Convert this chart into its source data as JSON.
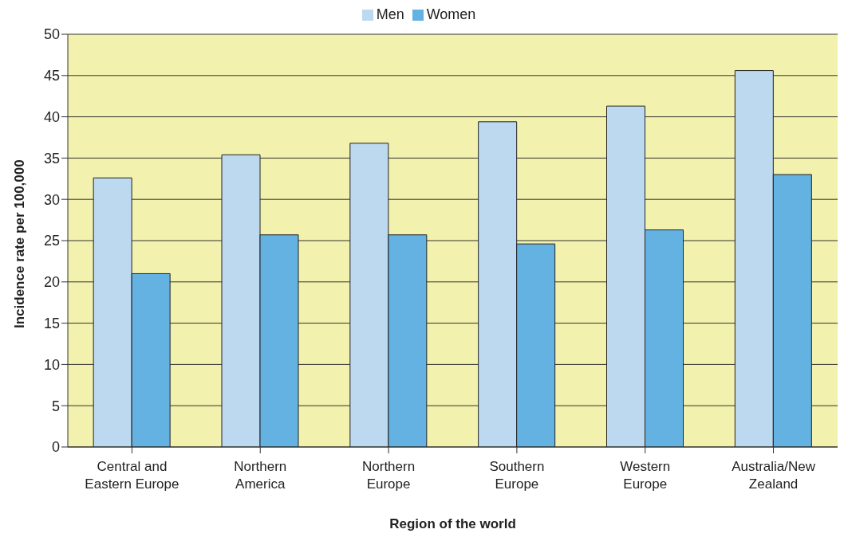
{
  "chart_data": {
    "type": "bar",
    "categories": [
      "Central and Eastern Europe",
      "Northern America",
      "Northern Europe",
      "Southern Europe",
      "Western Europe",
      "Australia/New Zealand"
    ],
    "series": [
      {
        "name": "Men",
        "color": "#bdd9f0",
        "values": [
          32.6,
          35.4,
          36.8,
          39.4,
          41.3,
          45.6
        ]
      },
      {
        "name": "Women",
        "color": "#63b2e2",
        "values": [
          21.0,
          25.7,
          25.7,
          24.6,
          26.3,
          33.0
        ]
      }
    ],
    "xlabel": "Region of the world",
    "ylabel": "Incidence rate per 100,000",
    "ylim": [
      0,
      50
    ],
    "yticks": [
      0,
      5,
      10,
      15,
      20,
      25,
      30,
      35,
      40,
      45,
      50
    ],
    "grid": "y",
    "legend": "top"
  }
}
